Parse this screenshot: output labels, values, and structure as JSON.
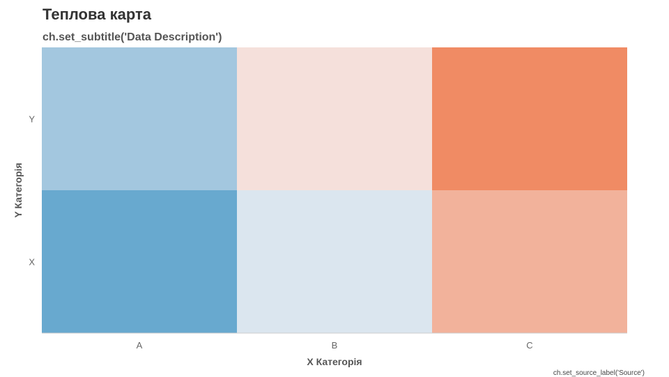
{
  "chart_data": {
    "type": "heatmap",
    "title": "Теплова карта",
    "subtitle": "ch.set_subtitle('Data Description')",
    "xlabel": "X Категорія",
    "ylabel": "Y Категорія",
    "x_categories": [
      "A",
      "B",
      "C"
    ],
    "y_categories": [
      "X",
      "Y"
    ],
    "cells": [
      {
        "x": "A",
        "y": "Y",
        "color": "#a3c7df"
      },
      {
        "x": "B",
        "y": "Y",
        "color": "#f5e0db"
      },
      {
        "x": "C",
        "y": "Y",
        "color": "#f08b64"
      },
      {
        "x": "A",
        "y": "X",
        "color": "#68a9cf"
      },
      {
        "x": "B",
        "y": "X",
        "color": "#dbe6ef"
      },
      {
        "x": "C",
        "y": "X",
        "color": "#f2b29b"
      }
    ],
    "source": "ch.set_source_label('Source')"
  }
}
